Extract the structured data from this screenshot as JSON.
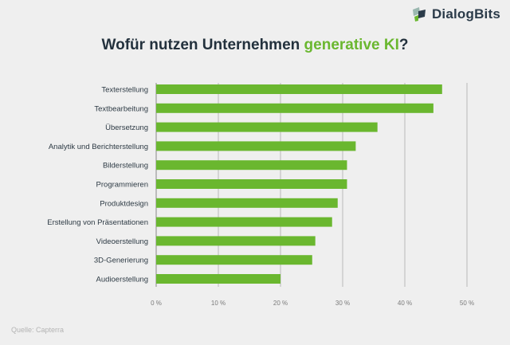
{
  "brand": {
    "name": "DialogBits",
    "accent": "#6ab72f",
    "dark": "#23313d"
  },
  "header": {
    "title_prefix": "Wofür nutzen Unternehmen ",
    "title_highlight": "generative KI",
    "title_suffix": "?"
  },
  "chart_data": {
    "type": "bar",
    "orientation": "horizontal",
    "title": "Wofür nutzen Unternehmen generative KI?",
    "xlabel": "",
    "ylabel": "",
    "xlim": [
      0,
      50
    ],
    "unit": "%",
    "grid": true,
    "bar_color": "#6ab72f",
    "ticks": [
      "0 %",
      "10 %",
      "20 %",
      "30 %",
      "40 %",
      "50 %"
    ],
    "tick_values": [
      0,
      10,
      20,
      30,
      40,
      50
    ],
    "categories": [
      "Texterstellung",
      "Textbearbeitung",
      "Übersetzung",
      "Analytik und Berichterstellung",
      "Bilderstellung",
      "Programmieren",
      "Produktdesign",
      "Erstellung von Präsentationen",
      "Videoerstellung",
      "3D-Generierung",
      "Audioerstellung"
    ],
    "values": [
      46,
      44.6,
      35.6,
      32.1,
      30.7,
      30.7,
      29.2,
      28.3,
      25.6,
      25.1,
      20
    ]
  },
  "footer": {
    "source": "Quelle: Capterra"
  }
}
